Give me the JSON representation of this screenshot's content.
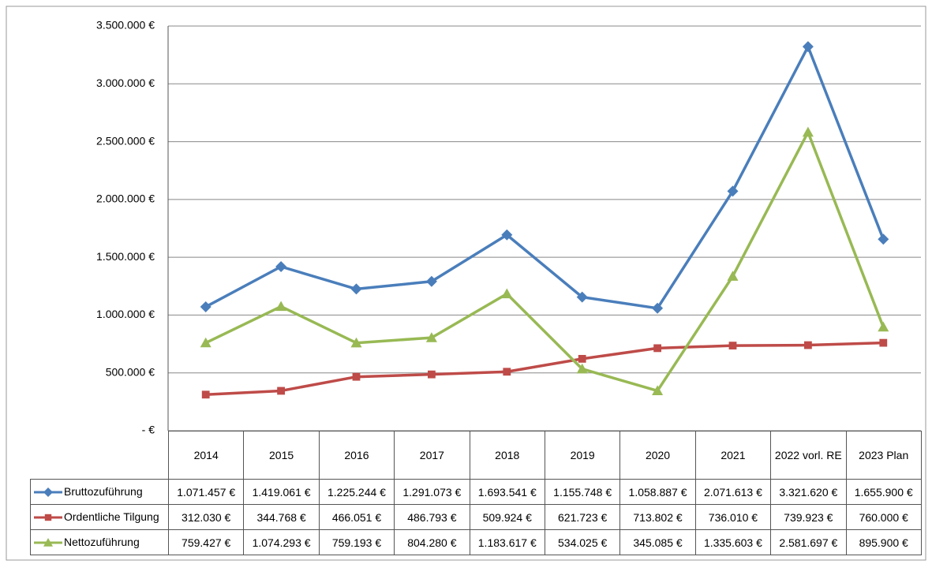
{
  "chart_data": {
    "type": "line",
    "categories": [
      "2014",
      "2015",
      "2016",
      "2017",
      "2018",
      "2019",
      "2020",
      "2021",
      "2022 vorl. RE",
      "2023 Plan"
    ],
    "series": [
      {
        "name": "Bruttozuführung",
        "color": "#4a7ebb",
        "marker": "diamond",
        "values": [
          1071457,
          1419061,
          1225244,
          1291073,
          1693541,
          1155748,
          1058887,
          2071613,
          3321620,
          1655900
        ],
        "value_labels": [
          "1.071.457 €",
          "1.419.061 €",
          "1.225.244 €",
          "1.291.073 €",
          "1.693.541 €",
          "1.155.748 €",
          "1.058.887 €",
          "2.071.613 €",
          "3.321.620 €",
          "1.655.900 €"
        ]
      },
      {
        "name": "Ordentliche Tilgung",
        "color": "#be4b48",
        "marker": "square",
        "values": [
          312030,
          344768,
          466051,
          486793,
          509924,
          621723,
          713802,
          736010,
          739923,
          760000
        ],
        "value_labels": [
          "312.030 €",
          "344.768 €",
          "466.051 €",
          "486.793 €",
          "509.924 €",
          "621.723 €",
          "713.802 €",
          "736.010 €",
          "739.923 €",
          "760.000 €"
        ]
      },
      {
        "name": "Nettozuführung",
        "color": "#98b954",
        "marker": "triangle",
        "values": [
          759427,
          1074293,
          759193,
          804280,
          1183617,
          534025,
          345085,
          1335603,
          2581697,
          895900
        ],
        "value_labels": [
          "759.427 €",
          "1.074.293 €",
          "759.193 €",
          "804.280 €",
          "1.183.617 €",
          "534.025 €",
          "345.085 €",
          "1.335.603 €",
          "2.581.697 €",
          "895.900 €"
        ]
      }
    ],
    "ylim": [
      0,
      3500000
    ],
    "yticks": [
      {
        "value": 0,
        "label": "-  €"
      },
      {
        "value": 500000,
        "label": "500.000 €"
      },
      {
        "value": 1000000,
        "label": "1.000.000 €"
      },
      {
        "value": 1500000,
        "label": "1.500.000 €"
      },
      {
        "value": 2000000,
        "label": "2.000.000 €"
      },
      {
        "value": 2500000,
        "label": "2.500.000 €"
      },
      {
        "value": 3000000,
        "label": "3.000.000 €"
      },
      {
        "value": 3500000,
        "label": "3.500.000 €"
      }
    ],
    "grid": true
  }
}
